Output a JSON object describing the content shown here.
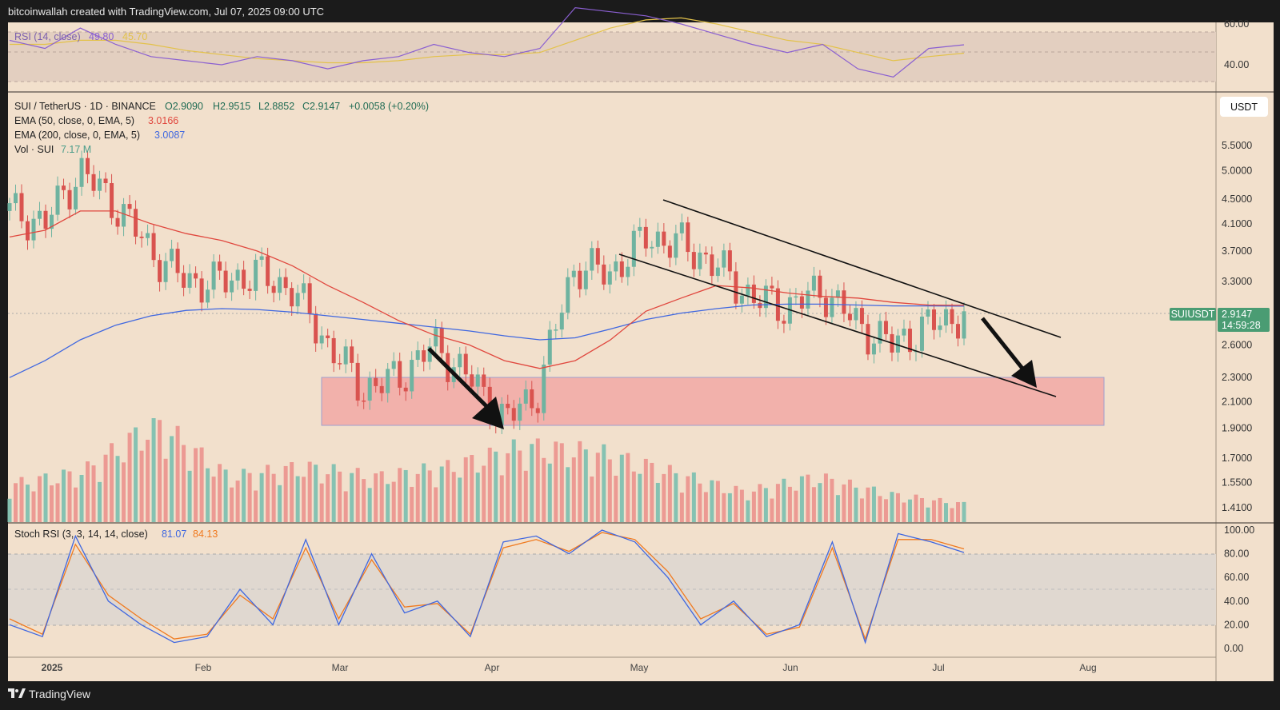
{
  "header": {
    "title": "bitcoinwallah created with TradingView.com, Jul 07, 2025 09:00 UTC"
  },
  "footer": {
    "brand": "TradingView"
  },
  "price_axis": {
    "currency": "USDT",
    "symbol_tag": "SUIUSDT",
    "last_price": "2.9147",
    "countdown": "14:59:28"
  },
  "legend": {
    "symbol": "SUI / TetherUS · 1D · BINANCE",
    "open": "O2.9090",
    "high": "H2.9515",
    "low": "L2.8852",
    "close": "C2.9147",
    "change": "+0.0058 (+0.20%)",
    "ema50_label": "EMA (50, close, 0, EMA, 5)",
    "ema50_value": "3.0166",
    "ema200_label": "EMA (200, close, 0, EMA, 5)",
    "ema200_value": "3.0087",
    "vol_label": "Vol · SUI",
    "vol_value": "7.17 M"
  },
  "rsi_legend": {
    "label": "RSI (14, close)",
    "value": "49.80",
    "ma_value": "45.70"
  },
  "stoch_legend": {
    "label": "Stoch RSI (3, 3, 14, 14, close)",
    "k_value": "81.07",
    "d_value": "84.13"
  },
  "colors": {
    "background": "#f2e0cc",
    "up": "#6fb3a0",
    "down": "#d9534f",
    "ema50": "#e0473e",
    "ema200": "#3f67e0",
    "rsi": "#8a5fd1",
    "rsi_ma": "#e3c24a",
    "stoch_k": "#3f67e0",
    "stoch_d": "#f07a1f",
    "support_zone": "#f2b1ab",
    "tag": "#4a9c73"
  },
  "chart_data": [
    {
      "type": "line",
      "title": "SUI / TetherUS · 1D · BINANCE",
      "ylabel": "USDT",
      "y_scale": "log",
      "ylim": [
        1.33,
        6.3
      ],
      "x_ticks": [
        "2025",
        "Feb",
        "Mar",
        "Apr",
        "May",
        "Jun",
        "Jul",
        "Aug"
      ],
      "y_ticks": [
        "5.5000",
        "5.0000",
        "4.5000",
        "4.1000",
        "3.7000",
        "3.3000",
        "2.6000",
        "2.3000",
        "2.1000",
        "1.9000",
        "1.7000",
        "1.5500",
        "1.4100"
      ],
      "x": [
        "2025-01-01",
        "2025-01-08",
        "2025-01-15",
        "2025-01-22",
        "2025-01-29",
        "2025-02-05",
        "2025-02-12",
        "2025-02-19",
        "2025-02-26",
        "2025-03-05",
        "2025-03-12",
        "2025-03-19",
        "2025-03-26",
        "2025-04-02",
        "2025-04-09",
        "2025-04-16",
        "2025-04-23",
        "2025-04-30",
        "2025-05-07",
        "2025-05-14",
        "2025-05-21",
        "2025-05-28",
        "2025-06-04",
        "2025-06-11",
        "2025-06-18",
        "2025-06-25",
        "2025-07-02",
        "2025-07-07"
      ],
      "series": [
        {
          "name": "Close",
          "values": [
            4.3,
            4.1,
            5.0,
            4.4,
            3.7,
            3.3,
            3.3,
            3.4,
            3.2,
            2.6,
            2.2,
            2.3,
            2.6,
            2.3,
            1.95,
            2.2,
            3.5,
            3.4,
            3.9,
            3.8,
            3.5,
            3.1,
            3.0,
            3.2,
            2.8,
            2.6,
            2.8,
            2.9147
          ]
        },
        {
          "name": "EMA (50, close, 0, EMA, 5)",
          "values": [
            3.9,
            4.0,
            4.3,
            4.3,
            4.1,
            3.95,
            3.85,
            3.7,
            3.5,
            3.25,
            3.05,
            2.85,
            2.7,
            2.6,
            2.45,
            2.38,
            2.45,
            2.65,
            2.95,
            3.1,
            3.25,
            3.22,
            3.16,
            3.12,
            3.1,
            3.05,
            3.02,
            3.0166
          ]
        },
        {
          "name": "EMA (200, close, 0, EMA, 5)",
          "values": [
            2.3,
            2.45,
            2.65,
            2.8,
            2.9,
            2.96,
            2.98,
            2.97,
            2.94,
            2.9,
            2.86,
            2.82,
            2.78,
            2.74,
            2.69,
            2.65,
            2.67,
            2.76,
            2.86,
            2.93,
            2.98,
            3.02,
            3.03,
            3.03,
            3.02,
            3.01,
            3.01,
            3.0087
          ]
        }
      ]
    },
    {
      "type": "bar",
      "title": "Vol · SUI",
      "x": [
        "2025-01-01",
        "2025-01-15",
        "2025-02-01",
        "2025-02-15",
        "2025-03-01",
        "2025-03-15",
        "2025-04-01",
        "2025-04-15",
        "2025-05-01",
        "2025-05-15",
        "2025-06-01",
        "2025-06-15",
        "2025-07-01",
        "2025-07-07"
      ],
      "values": [
        15,
        20,
        40,
        18,
        22,
        18,
        22,
        30,
        28,
        20,
        12,
        18,
        11,
        7.17
      ],
      "units": "M"
    },
    {
      "type": "line",
      "title": "RSI (14, close)",
      "ylim": [
        20,
        82
      ],
      "y_ticks": [
        "60.00",
        "40.00"
      ],
      "series": [
        {
          "name": "RSI",
          "values": [
            52,
            48,
            58,
            50,
            44,
            42,
            40,
            44,
            42,
            38,
            42,
            44,
            50,
            46,
            44,
            48,
            68,
            66,
            64,
            60,
            55,
            50,
            46,
            50,
            38,
            34,
            48,
            49.8
          ]
        },
        {
          "name": "RSI MA",
          "values": [
            50,
            50,
            52,
            52,
            50,
            47,
            45,
            43,
            42,
            41,
            41,
            42,
            44,
            45,
            45,
            46,
            52,
            58,
            62,
            63,
            60,
            56,
            52,
            50,
            46,
            42,
            44,
            45.7
          ]
        }
      ]
    },
    {
      "type": "line",
      "title": "Stoch RSI (3, 3, 14, 14, close)",
      "ylim": [
        -5,
        105
      ],
      "y_ticks": [
        "100.00",
        "80.00",
        "60.00",
        "40.00",
        "20.00",
        "0.00"
      ],
      "series": [
        {
          "name": "K",
          "values": [
            20,
            10,
            95,
            40,
            20,
            5,
            10,
            50,
            20,
            92,
            20,
            80,
            30,
            40,
            10,
            90,
            95,
            80,
            100,
            90,
            60,
            20,
            40,
            10,
            20,
            90,
            5,
            97,
            90,
            81.07
          ]
        },
        {
          "name": "D",
          "values": [
            25,
            12,
            88,
            45,
            25,
            8,
            12,
            45,
            25,
            85,
            25,
            75,
            35,
            38,
            12,
            85,
            92,
            82,
            98,
            92,
            65,
            25,
            38,
            12,
            18,
            85,
            8,
            92,
            92,
            84.13
          ]
        }
      ]
    }
  ]
}
